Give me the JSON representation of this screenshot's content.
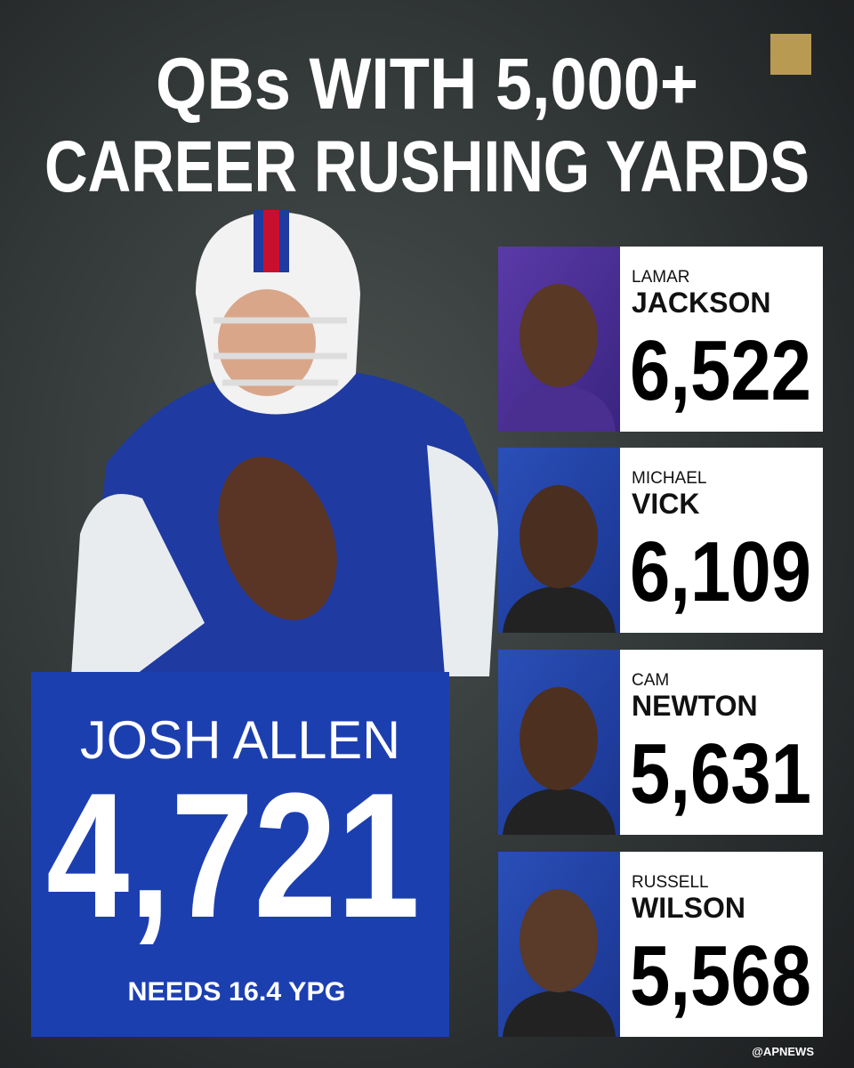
{
  "header": {
    "title_lines": [
      "QBs WITH 5,000+",
      "CAREER RUSHING YARDS"
    ]
  },
  "featured": {
    "name": "JOSH ALLEN",
    "yards": "4,721",
    "note": "NEEDS 16.4 YPG"
  },
  "players": [
    {
      "first": "LAMAR",
      "last": "JACKSON",
      "yards": "6,522"
    },
    {
      "first": "MICHAEL",
      "last": "VICK",
      "yards": "6,109"
    },
    {
      "first": "CAM",
      "last": "NEWTON",
      "yards": "5,631"
    },
    {
      "first": "RUSSELL",
      "last": "WILSON",
      "yards": "5,568"
    }
  ],
  "footer": {
    "handle": "@APNEWS"
  }
}
